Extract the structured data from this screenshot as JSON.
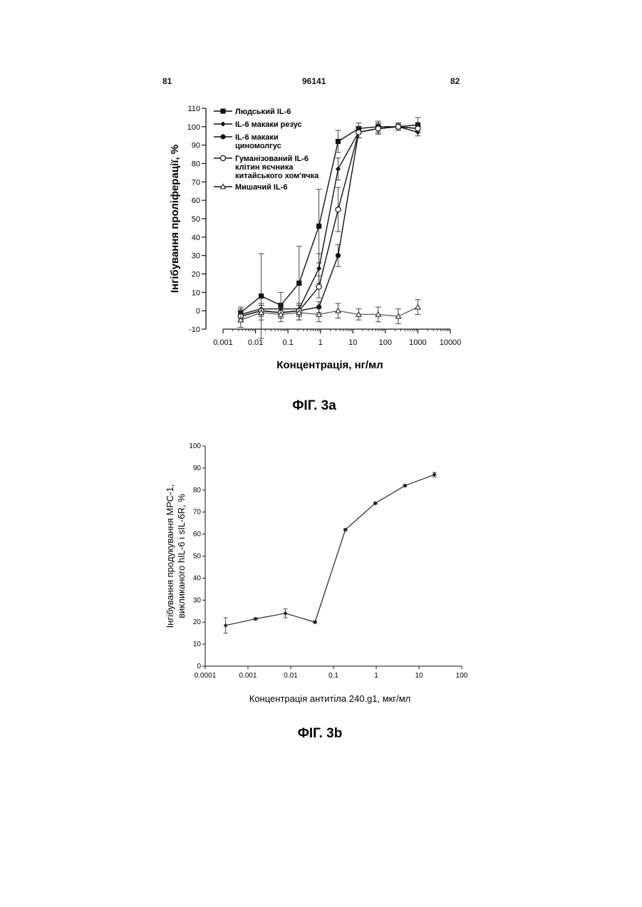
{
  "header": {
    "page_left": "81",
    "doc_number": "96141",
    "page_right": "82"
  },
  "chart_data": [
    {
      "type": "line",
      "caption": "ФІГ. 3а",
      "xlabel": "Концентрація, нг/мл",
      "ylabel": "Інгібування проліферації, %",
      "xscale": "log",
      "xlim": [
        0.001,
        10000
      ],
      "ylim": [
        -10,
        110
      ],
      "xticks": [
        {
          "v": 0.001,
          "label": "0.001"
        },
        {
          "v": 0.01,
          "label": "0.01"
        },
        {
          "v": 0.1,
          "label": "0.1"
        },
        {
          "v": 1,
          "label": "1"
        },
        {
          "v": 10,
          "label": "10"
        },
        {
          "v": 100,
          "label": "100"
        },
        {
          "v": 1000,
          "label": "1000"
        },
        {
          "v": 10000,
          "label": "10000"
        }
      ],
      "yticks": [
        {
          "v": 110,
          "label": "110"
        },
        {
          "v": 100,
          "label": "100"
        },
        {
          "v": 90,
          "label": "90"
        },
        {
          "v": 80,
          "label": "80"
        },
        {
          "v": 70,
          "label": "70"
        },
        {
          "v": 60,
          "label": "60"
        },
        {
          "v": 50,
          "label": "50"
        },
        {
          "v": 40,
          "label": "40"
        },
        {
          "v": 30,
          "label": "30"
        },
        {
          "v": 20,
          "label": "20"
        },
        {
          "v": 10,
          "label": "10"
        },
        {
          "v": 0,
          "label": "0"
        },
        {
          "v": -10,
          "label": "-10"
        }
      ],
      "legend_position": "top-left",
      "series": [
        {
          "name": "Людський IL-6",
          "marker": "square",
          "x": [
            0.0035,
            0.015,
            0.06,
            0.22,
            0.9,
            3.5,
            15,
            60,
            250,
            1000
          ],
          "y": [
            -1,
            8,
            3,
            15,
            46,
            92,
            99,
            100,
            100,
            101
          ],
          "err": [
            3,
            23,
            7,
            20,
            20,
            6,
            3,
            3,
            2,
            4
          ]
        },
        {
          "name": "IL-6 макаки резус",
          "marker": "diamond",
          "x": [
            0.0035,
            0.015,
            0.06,
            0.22,
            0.9,
            3.5,
            15,
            60,
            250,
            1000
          ],
          "y": [
            -2,
            1,
            1,
            1,
            23,
            77,
            97,
            99,
            100,
            97
          ],
          "err": [
            3,
            3,
            3,
            3,
            8,
            6,
            3,
            3,
            2,
            2
          ]
        },
        {
          "name": "IL-6 макаки циномолгус",
          "marker": "circle",
          "x": [
            0.0035,
            0.015,
            0.06,
            0.22,
            0.9,
            3.5,
            15,
            60,
            250,
            1000
          ],
          "y": [
            -3,
            0,
            -1,
            0,
            2,
            30,
            97,
            99,
            100,
            99
          ],
          "err": [
            3,
            3,
            3,
            3,
            3,
            6,
            3,
            3,
            2,
            2
          ]
        },
        {
          "name": "Гуманізований IL-6 клітин яєчника китайського хом'ячка",
          "marker": "open-circle",
          "x": [
            0.0035,
            0.015,
            0.06,
            0.22,
            0.9,
            3.5,
            15,
            60,
            250,
            1000
          ],
          "y": [
            -3,
            0,
            -1,
            0,
            13,
            55,
            97,
            99,
            100,
            99
          ],
          "err": [
            3,
            3,
            3,
            3,
            6,
            12,
            3,
            3,
            2,
            2
          ]
        },
        {
          "name": "Мишачий IL-6",
          "marker": "triangle",
          "x": [
            0.0035,
            0.015,
            0.06,
            0.22,
            0.9,
            3.5,
            15,
            60,
            250,
            1000
          ],
          "y": [
            -5,
            -1,
            -2,
            -1,
            -2,
            0,
            -2,
            -2,
            -3,
            2
          ],
          "err": [
            4,
            4,
            4,
            4,
            4,
            4,
            3,
            4,
            4,
            4
          ]
        }
      ]
    },
    {
      "type": "line",
      "caption": "ФІГ. 3b",
      "xlabel": "Концентрація антитіла 240.g1, мкг/мл",
      "ylabel_lines": [
        "Інгібування продукування МРС-1,",
        "викликаного hIL-6 і sIL-6R, %"
      ],
      "xscale": "log",
      "xlim": [
        0.0001,
        100
      ],
      "ylim": [
        0,
        100
      ],
      "xticks": [
        {
          "v": 0.0001,
          "label": "0.0001"
        },
        {
          "v": 0.001,
          "label": "0.001"
        },
        {
          "v": 0.01,
          "label": "0.01"
        },
        {
          "v": 0.1,
          "label": "0.1"
        },
        {
          "v": 1,
          "label": "1"
        },
        {
          "v": 10,
          "label": "10"
        },
        {
          "v": 100,
          "label": "100"
        }
      ],
      "yticks": [
        {
          "v": 100,
          "label": "100"
        },
        {
          "v": 90,
          "label": "90"
        },
        {
          "v": 80,
          "label": "80"
        },
        {
          "v": 70,
          "label": "70"
        },
        {
          "v": 60,
          "label": "60"
        },
        {
          "v": 50,
          "label": "50"
        },
        {
          "v": 40,
          "label": "40"
        },
        {
          "v": 30,
          "label": "30"
        },
        {
          "v": 20,
          "label": "20"
        },
        {
          "v": 10,
          "label": "10"
        },
        {
          "v": 0,
          "label": "0"
        }
      ],
      "series": [
        {
          "marker": "diamond",
          "x": [
            0.0003,
            0.0015,
            0.0075,
            0.037,
            0.19,
            0.95,
            4.7,
            23
          ],
          "y": [
            18.5,
            21.5,
            24,
            20,
            62,
            74,
            82,
            87
          ],
          "err": [
            3.5,
            0.5,
            2,
            0.5,
            0.5,
            0.5,
            0.5,
            1
          ]
        }
      ]
    }
  ]
}
